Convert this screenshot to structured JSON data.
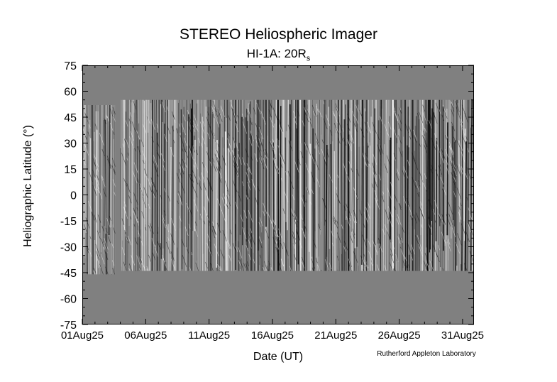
{
  "chart_data": {
    "type": "heatmap",
    "title": "STEREO Heliospheric Imager",
    "subtitle_main": "HI-1A: 20R",
    "subtitle_sub": "s",
    "xlabel": "Date (UT)",
    "ylabel": "Heliographic Latitude (°)",
    "x_tick_labels": [
      "01Aug25",
      "06Aug25",
      "11Aug25",
      "16Aug25",
      "21Aug25",
      "26Aug25",
      "31Aug25"
    ],
    "y_tick_labels": [
      "75",
      "60",
      "45",
      "30",
      "15",
      "0",
      "-15",
      "-30",
      "-45",
      "-60",
      "-75"
    ],
    "y_ticks": [
      75,
      60,
      45,
      30,
      15,
      0,
      -15,
      -30,
      -45,
      -60,
      -75
    ],
    "xlim_days": [
      1,
      31.9
    ],
    "ylim": [
      -75,
      75
    ],
    "data_coverage": [
      {
        "start_day": 1.0,
        "end_day": 3.6,
        "lat_min": -46,
        "lat_max": 52
      },
      {
        "start_day": 4.0,
        "end_day": 31.9,
        "lat_min": -44,
        "lat_max": 55
      }
    ],
    "colors": {
      "background_fill": "#808080",
      "data_dark": "#000000",
      "data_light": "#ffffff"
    },
    "credit": "Rutherford Appleton Laboratory"
  }
}
